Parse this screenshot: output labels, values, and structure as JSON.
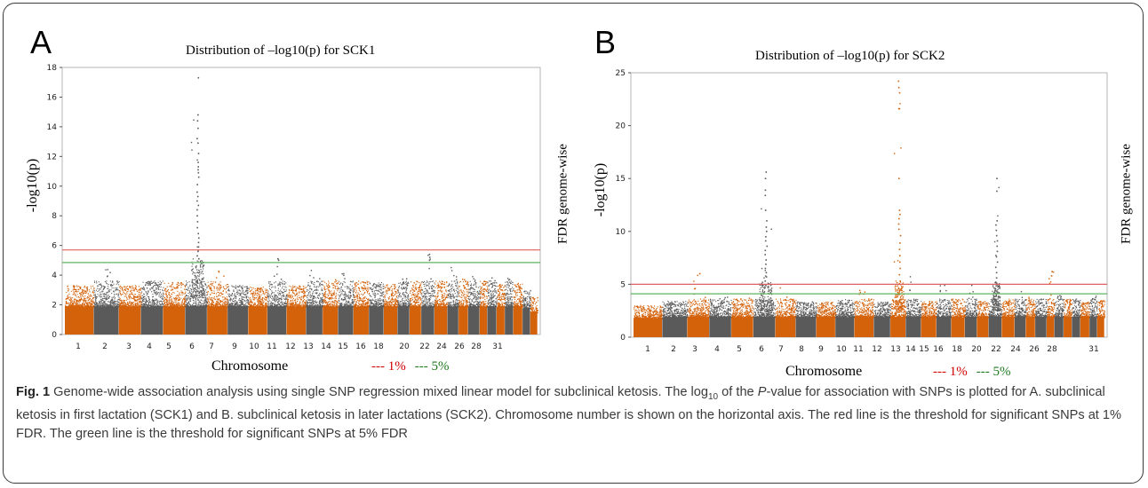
{
  "panels": [
    {
      "letter": "A",
      "title": "Distribution of –log10(p) for SCK1",
      "ylabel": "-log10(p)",
      "xlabel": "Chromosome",
      "right_label": "FDR genome-wise",
      "legend_1pct": "--- 1%",
      "legend_5pct": "--- 5%"
    },
    {
      "letter": "B",
      "title": "Distribution of –log10(p) for SCK2",
      "ylabel": "-log10(p)",
      "xlabel": "Chromosome",
      "right_label": "FDR genome-wise",
      "legend_1pct": "--- 1%",
      "legend_5pct": "--- 5%"
    }
  ],
  "colors": {
    "odd_chromosome": "#d4620b",
    "even_chromosome": "#5a5a5a",
    "fdr_1pct": "#e06060",
    "fdr_5pct": "#5fb35f"
  },
  "caption": {
    "fig_label": "Fig. 1",
    "part1": " Genome-wide association analysis using single SNP regression mixed linear model for subclinical ketosis. The log",
    "sub": "10",
    "part2": " of the ",
    "italic": "P",
    "part3": "-value for association with SNPs is plotted for A. subclinical ketosis in first lactation (SCK1) and B. subclinical ketosis in later lactations (SCK2). Chromosome number is shown on the horizontal axis. The red line is the threshold for significant SNPs at 1% FDR. The green line is the threshold for significant SNPs at 5% FDR"
  },
  "chart_data": [
    {
      "type": "scatter",
      "subtype": "manhattan",
      "title": "Distribution of –log10(p) for SCK1",
      "xlabel": "Chromosome",
      "ylabel": "-log10(p)",
      "ylim": [
        0,
        18
      ],
      "yticks": [
        0,
        2,
        4,
        6,
        8,
        10,
        12,
        14,
        16,
        18
      ],
      "chromosomes": [
        1,
        2,
        3,
        4,
        5,
        6,
        7,
        8,
        9,
        10,
        11,
        12,
        13,
        14,
        15,
        16,
        17,
        18,
        19,
        20,
        21,
        22,
        23,
        24,
        25,
        26,
        27,
        28,
        29,
        30,
        31
      ],
      "x_tick_labels": [
        "1",
        "2",
        "3",
        "4",
        "5",
        "6",
        "7",
        "9",
        "10",
        "11",
        "12",
        "13",
        "14",
        "15",
        "16",
        "18",
        "20",
        "22",
        "24",
        "26",
        "28",
        "31"
      ],
      "thresholds": [
        {
          "name": "1%",
          "value": 5.7
        },
        {
          "name": "5%",
          "value": 4.85
        }
      ],
      "series_max": [
        3.3,
        4.8,
        3.3,
        3.6,
        3.5,
        17.3,
        4.8,
        3.3,
        3.2,
        5.1,
        3.3,
        4.4,
        4.4,
        4.3,
        3.6,
        3.5,
        3.4,
        3.8,
        3.6,
        5.4,
        3.9,
        4.6,
        3.8,
        3.9,
        3.6,
        3.9,
        3.4,
        3.9,
        3.5,
        3.0,
        2.5
      ],
      "peaks": [
        {
          "chromosome": 6,
          "values": [
            17.3,
            14.8,
            14.4,
            13.9,
            13.2,
            12.9,
            12.2,
            11.6,
            11.3,
            11.1,
            10.9,
            10.6,
            10.1,
            9.6,
            9.3,
            9.0,
            8.7,
            8.4,
            8.0,
            7.6,
            7.2,
            6.8,
            6.5,
            6.2,
            5.9,
            5.6,
            5.3,
            5.1
          ]
        },
        {
          "chromosome": 10,
          "values": [
            5.1,
            5.0
          ]
        },
        {
          "chromosome": 20,
          "values": [
            5.4,
            5.2,
            5.0
          ]
        }
      ]
    },
    {
      "type": "scatter",
      "subtype": "manhattan",
      "title": "Distribution of –log10(p) for SCK2",
      "xlabel": "Chromosome",
      "ylabel": "-log10(p)",
      "ylim": [
        0,
        25
      ],
      "yticks": [
        0,
        5,
        10,
        15,
        20,
        25
      ],
      "chromosomes": [
        1,
        2,
        3,
        4,
        5,
        6,
        7,
        8,
        9,
        10,
        11,
        12,
        13,
        14,
        15,
        16,
        17,
        18,
        19,
        20,
        21,
        22,
        23,
        24,
        25,
        26,
        27,
        28,
        29,
        30,
        31
      ],
      "x_tick_labels": [
        "1",
        "2",
        "3",
        "4",
        "5",
        "6",
        "7",
        "8",
        "9",
        "10",
        "11",
        "12",
        "13",
        "14",
        "15",
        "16",
        "18",
        "20",
        "22",
        "24",
        "26",
        "28",
        "31"
      ],
      "thresholds": [
        {
          "name": "1%",
          "value": 5.0
        },
        {
          "name": "5%",
          "value": 4.1
        }
      ],
      "series_max": [
        3.0,
        3.4,
        6.0,
        3.8,
        3.7,
        15.6,
        4.9,
        3.4,
        3.3,
        3.6,
        4.8,
        3.3,
        24.2,
        5.8,
        3.4,
        5.2,
        3.6,
        4.9,
        3.4,
        15.0,
        3.6,
        4.4,
        3.8,
        3.6,
        6.2,
        4.1,
        3.7,
        3.6,
        3.3,
        3.9,
        3.5
      ],
      "peaks": [
        {
          "chromosome": 6,
          "values": [
            15.6,
            15.0,
            13.9,
            13.4,
            12.0,
            11.0,
            10.4,
            10.0,
            9.5,
            9.1,
            8.6,
            8.2,
            7.8,
            7.3,
            6.9,
            6.5,
            6.1,
            5.7,
            5.3
          ]
        },
        {
          "chromosome": 13,
          "values": [
            24.2,
            23.6,
            23.1,
            21.6,
            15.0,
            12.0,
            11.6,
            11.2,
            10.7,
            10.2,
            9.6,
            8.9,
            8.3,
            7.7,
            7.1,
            6.5,
            5.9,
            5.3
          ]
        },
        {
          "chromosome": 20,
          "values": [
            15.0,
            13.8,
            11.0,
            10.6,
            10.1,
            9.6,
            9.1,
            8.6,
            8.1,
            7.6,
            7.1,
            6.6,
            6.1,
            5.6,
            5.2
          ]
        },
        {
          "chromosome": 3,
          "values": [
            6.0
          ]
        },
        {
          "chromosome": 25,
          "values": [
            6.2,
            5.8
          ]
        }
      ]
    }
  ]
}
